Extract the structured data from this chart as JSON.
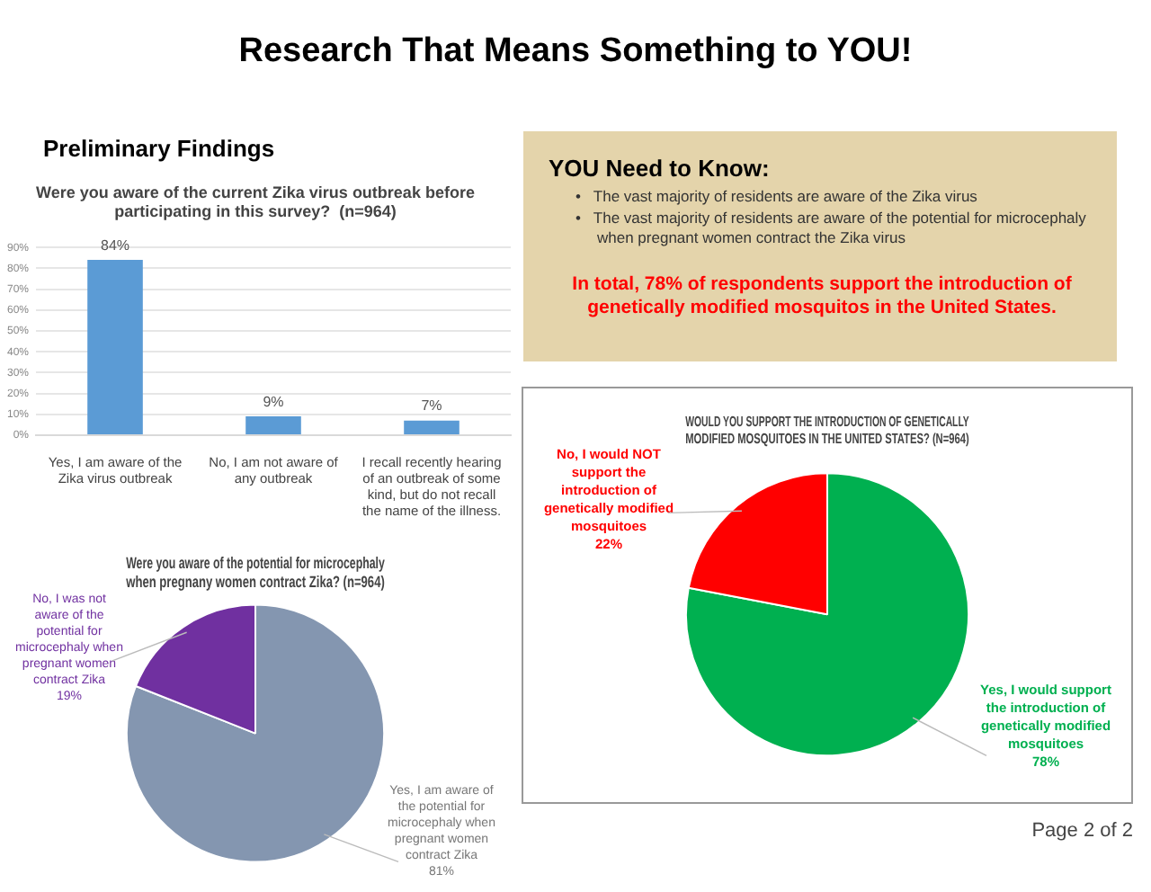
{
  "chart_data": [
    {
      "type": "other",
      "title": "Research That Means Something to YOU!",
      "annotations": [
        "Preliminary Findings",
        "YOU Need to Know:",
        "• The vast majority of residents are aware of the Zika virus",
        "• The vast majority of residents are aware of the potential for microcephaly when pregnant women contract the Zika virus",
        "In total, 78% of respondents support the introduction of genetically modified mosquitos in the United States.",
        "Page 2 of 2"
      ]
    },
    {
      "type": "bar",
      "title": "Were you aware of the current Zika virus outbreak before participating in this survey?  (n=964)",
      "categories": [
        "Yes, I am aware of the Zika virus outbreak",
        "No, I am not aware of any outbreak",
        "I recall recently hearing of an outbreak of some kind, but do not recall the name of the illness."
      ],
      "values": [
        84,
        9,
        7
      ],
      "value_labels": [
        "84%",
        "9%",
        "7%"
      ],
      "color": "#5b9bd5",
      "ylim": [
        0,
        90
      ],
      "yticks": [
        {
          "value": 0,
          "label": "0%"
        },
        {
          "value": 10,
          "label": "10%"
        },
        {
          "value": 20,
          "label": "20%"
        },
        {
          "value": 30,
          "label": "30%"
        },
        {
          "value": 40,
          "label": "40%"
        },
        {
          "value": 50,
          "label": "50%"
        },
        {
          "value": 60,
          "label": "60%"
        },
        {
          "value": 70,
          "label": "70%"
        },
        {
          "value": 80,
          "label": "80%"
        },
        {
          "value": 90,
          "label": "90%"
        }
      ],
      "grid": "y",
      "legend": false
    },
    {
      "type": "pie",
      "title": "Were you aware of the potential for microcephaly when pregnany women contract Zika? (n=964)",
      "categories": [
        "Yes, I am aware of the potential for microcephaly when pregnant women contract Zika",
        "No, I was not aware of the potential for microcephaly when pregnant women contract Zika"
      ],
      "values": [
        81,
        19
      ],
      "value_labels": [
        "81%",
        "19%"
      ],
      "colors": [
        "#8496b0",
        "#7030a0"
      ],
      "legend": false
    },
    {
      "type": "pie",
      "title": "WOULD YOU SUPPORT THE INTRODUCTION OF GENETICALLY MODIFIED MOSQUITOES IN THE UNITED STATES? (N=964)",
      "categories": [
        "Yes, I would support the introduction of genetically modified mosquitoes",
        "No, I would NOT support the introduction of genetically modified mosquitoes"
      ],
      "values": [
        78,
        22
      ],
      "value_labels": [
        "78%",
        "22%"
      ],
      "colors": [
        "#00b050",
        "#ff0000"
      ],
      "legend": false
    }
  ]
}
